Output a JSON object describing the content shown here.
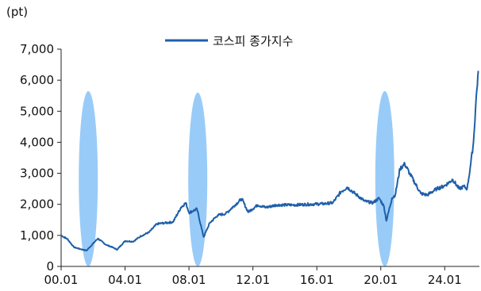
{
  "chart_data": {
    "type": "line",
    "unit_label": "(pt)",
    "title": "",
    "xlabel": "",
    "ylabel": "",
    "xlim": [
      2000.0,
      2026.17
    ],
    "ylim": [
      0,
      7000
    ],
    "y_ticks": [
      {
        "value": 0,
        "label": "0"
      },
      {
        "value": 1000,
        "label": "1,000"
      },
      {
        "value": 2000,
        "label": "2,000"
      },
      {
        "value": 3000,
        "label": "3,000"
      },
      {
        "value": 4000,
        "label": "4,000"
      },
      {
        "value": 5000,
        "label": "5,000"
      },
      {
        "value": 6000,
        "label": "6,000"
      },
      {
        "value": 7000,
        "label": "7,000"
      }
    ],
    "x_ticks": [
      {
        "value": 2000,
        "label": "00.01"
      },
      {
        "value": 2004,
        "label": "04.01"
      },
      {
        "value": 2008,
        "label": "08.01"
      },
      {
        "value": 2012,
        "label": "12.01"
      },
      {
        "value": 2016,
        "label": "16.01"
      },
      {
        "value": 2020,
        "label": "20.01"
      },
      {
        "value": 2024,
        "label": "24.01"
      }
    ],
    "grid": false,
    "legend_position": "top-center",
    "series": [
      {
        "name": "코스피 종가지수",
        "color": "#1f5fa8",
        "x": [
          2000.0,
          2000.4,
          2000.8,
          2001.2,
          2001.6,
          2001.75,
          2002.3,
          2002.8,
          2003.2,
          2003.5,
          2004.0,
          2004.5,
          2005.0,
          2005.5,
          2006.0,
          2006.5,
          2007.0,
          2007.5,
          2007.8,
          2008.0,
          2008.5,
          2008.8,
          2008.92,
          2009.3,
          2009.8,
          2010.3,
          2011.3,
          2011.7,
          2012.3,
          2012.8,
          2013.5,
          2014.5,
          2015.5,
          2016.5,
          2017.0,
          2017.5,
          2017.9,
          2018.5,
          2019.0,
          2019.5,
          2019.9,
          2020.2,
          2020.35,
          2020.7,
          2020.9,
          2021.2,
          2021.5,
          2021.8,
          2022.5,
          2022.9,
          2023.5,
          2024.0,
          2024.5,
          2024.9,
          2025.2,
          2025.4,
          2025.6,
          2025.8,
          2025.95,
          2026.1
        ],
        "y": [
          1000,
          880,
          620,
          560,
          510,
          600,
          900,
          700,
          620,
          540,
          820,
          800,
          980,
          1100,
          1370,
          1400,
          1430,
          1900,
          2050,
          1730,
          1850,
          1200,
          950,
          1400,
          1650,
          1700,
          2180,
          1750,
          1980,
          1900,
          1980,
          1980,
          2000,
          2020,
          2050,
          2400,
          2550,
          2300,
          2100,
          2050,
          2200,
          1930,
          1470,
          2200,
          2300,
          3150,
          3300,
          3000,
          2350,
          2300,
          2500,
          2600,
          2800,
          2500,
          2580,
          2500,
          3200,
          4000,
          5300,
          6300
        ]
      }
    ]
  },
  "highlights": [
    {
      "label": "",
      "center_x": 2001.7,
      "value_range": [
        0,
        5650
      ],
      "color": "#8ec5f7"
    },
    {
      "label": "",
      "center_x": 2008.55,
      "value_range": [
        0,
        5600
      ],
      "color": "#8ec5f7"
    },
    {
      "label": "",
      "center_x": 2020.25,
      "value_range": [
        0,
        5650
      ],
      "color": "#8ec5f7"
    }
  ]
}
